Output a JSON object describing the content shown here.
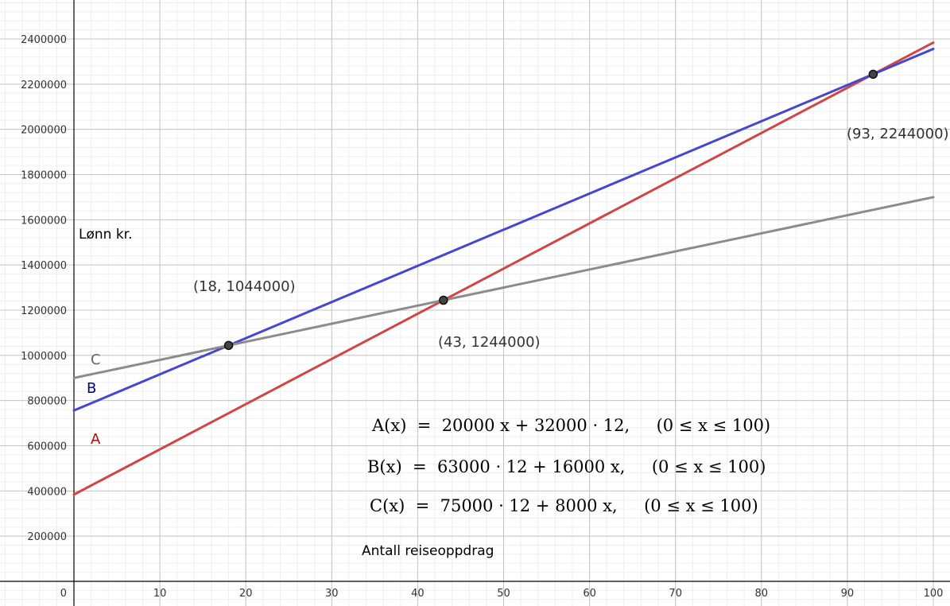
{
  "chart_data": {
    "type": "line",
    "xlabel": "Antall reiseoppdrag",
    "ylabel": "Lønn kr.",
    "xlim": [
      0,
      100
    ],
    "ylim": [
      0,
      2400000
    ],
    "grid": true,
    "x_ticks": [
      0,
      10,
      20,
      30,
      40,
      50,
      60,
      70,
      80,
      90,
      100
    ],
    "y_ticks": [
      200000,
      400000,
      600000,
      800000,
      1000000,
      1200000,
      1400000,
      1600000,
      1800000,
      2000000,
      2200000,
      2400000
    ],
    "x_tick_labels": [
      "0",
      "10",
      "20",
      "30",
      "40",
      "50",
      "60",
      "70",
      "80",
      "90",
      "100"
    ],
    "y_tick_labels": [
      "200000",
      "400000",
      "600000",
      "800000",
      "1000000",
      "1200000",
      "1400000",
      "1600000",
      "1800000",
      "2000000",
      "2200000",
      "2400000"
    ],
    "series": [
      {
        "name": "A",
        "color": "#d14545",
        "x": [
          0,
          100
        ],
        "values": [
          384000,
          2384000
        ]
      },
      {
        "name": "B",
        "color": "#4646d1",
        "x": [
          0,
          100
        ],
        "values": [
          756000,
          2356000
        ]
      },
      {
        "name": "C",
        "color": "#8c8c8c",
        "x": [
          0,
          100
        ],
        "values": [
          900000,
          1700000
        ]
      }
    ],
    "points": [
      {
        "x": 18,
        "y": 1044000,
        "label": "(18, 1044000)"
      },
      {
        "x": 43,
        "y": 1244000,
        "label": "(43, 1244000)"
      },
      {
        "x": 93,
        "y": 2244000,
        "label": "(93, 2244000)"
      }
    ],
    "annotations": [
      "A(x)  =  20000 x + 32000 · 12,     (0 ≤ x ≤ 100)",
      "B(x)  =  63000 · 12 + 16000 x,     (0 ≤ x ≤ 100)",
      "C(x)  =  75000 · 12 + 8000 x,     (0 ≤ x ≤ 100)"
    ]
  }
}
